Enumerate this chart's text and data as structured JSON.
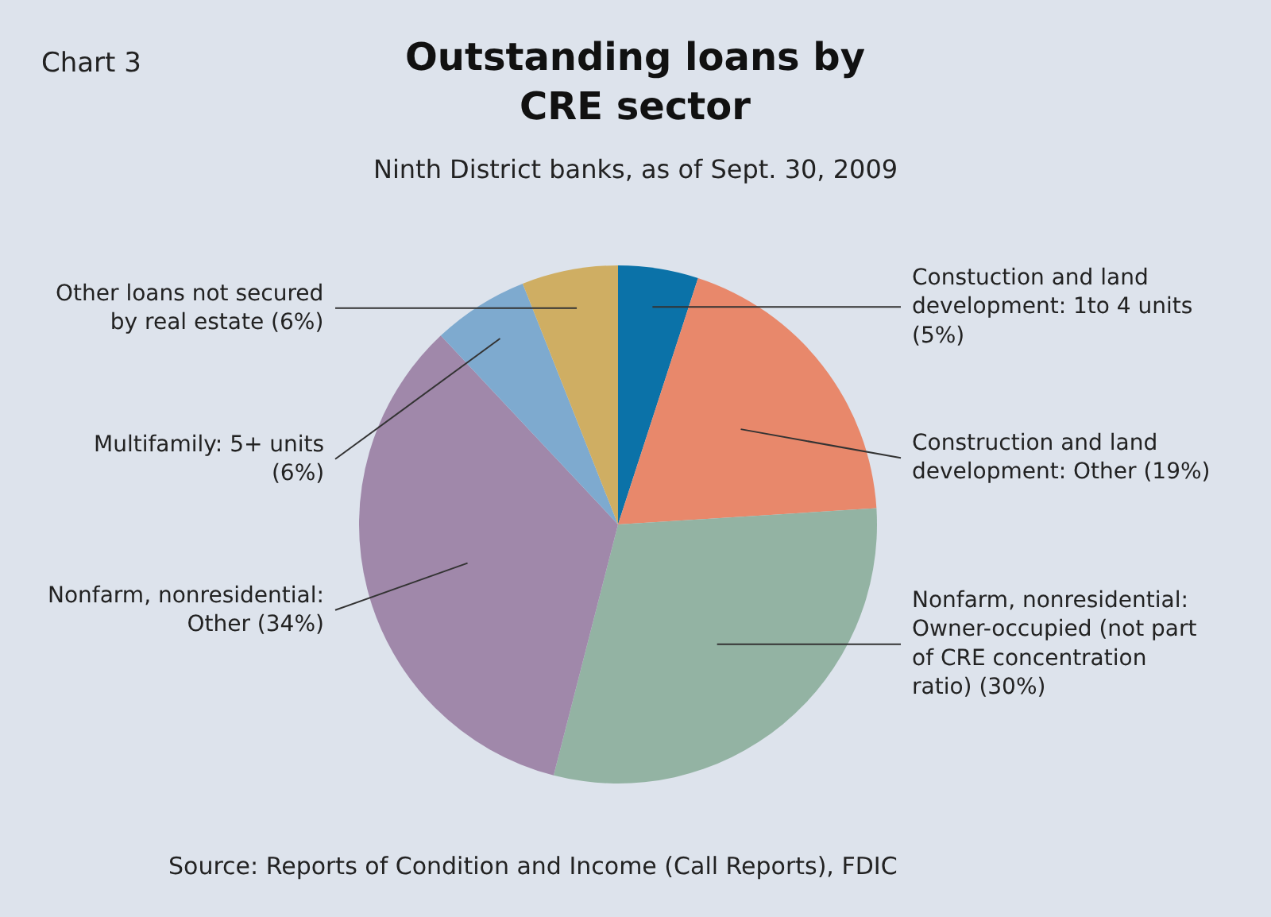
{
  "chart_data": {
    "type": "pie",
    "title": "Outstanding loans by CRE sector",
    "subtitle": "Ninth District banks, as of Sept. 30, 2009",
    "categories": [
      "Constuction and land development: 1to 4 units",
      "Construction and land development: Other",
      "Nonfarm, nonresidential: Owner-occupied (not part of CRE concentration ratio)",
      "Nonfarm, nonresidential: Other",
      "Multifamily: 5+ units",
      "Other loans not secured by real estate"
    ],
    "values": [
      5,
      19,
      30,
      34,
      6,
      6
    ],
    "value_labels": [
      "(5%)",
      "(19%)",
      "(30%)",
      "(34%)",
      "(6%)",
      "(6%)"
    ],
    "colors": [
      "#0b72a8",
      "#e8886b",
      "#93b3a3",
      "#a088aa",
      "#7eaacf",
      "#cfae63"
    ],
    "annotations": [
      "Chart 3",
      "Source: Reports of Condition and Income (Call Reports), FDIC"
    ]
  }
}
